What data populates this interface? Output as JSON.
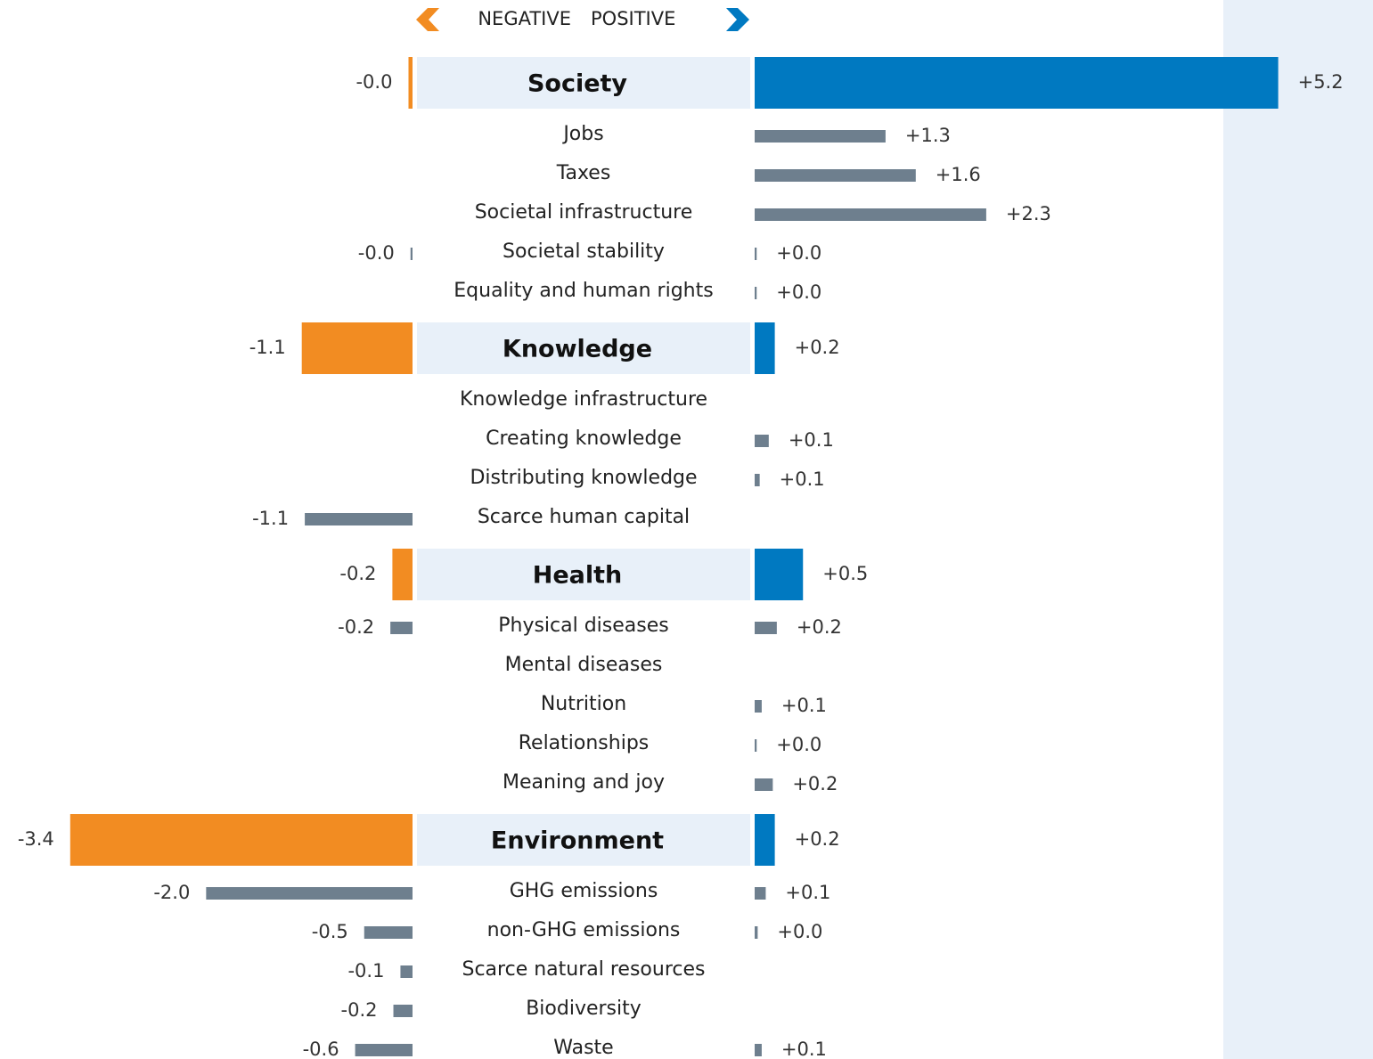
{
  "chart_data": {
    "type": "diverging_bar",
    "legend": {
      "negative": "NEGATIVE",
      "positive": "POSITIVE"
    },
    "colors": {
      "negative": "#f28c22",
      "positive": "#0079c1",
      "item": "#6e7f8e",
      "header": "#e8f0f9"
    },
    "groups": [
      {
        "name": "Society",
        "negative": -0.04,
        "negative_label": "-0.0",
        "positive": 5.2,
        "positive_label": "+5.2",
        "items": [
          {
            "name": "Jobs",
            "negative": null,
            "negative_label": null,
            "positive": 1.3,
            "positive_label": "+1.3"
          },
          {
            "name": "Taxes",
            "negative": null,
            "negative_label": null,
            "positive": 1.6,
            "positive_label": "+1.6"
          },
          {
            "name": "Societal infrastructure",
            "negative": null,
            "negative_label": null,
            "positive": 2.3,
            "positive_label": "+2.3"
          },
          {
            "name": "Societal stability",
            "negative": -0.02,
            "negative_label": "-0.0",
            "positive": 0.02,
            "positive_label": "+0.0"
          },
          {
            "name": "Equality and human rights",
            "negative": null,
            "negative_label": null,
            "positive": 0.02,
            "positive_label": "+0.0"
          }
        ]
      },
      {
        "name": "Knowledge",
        "negative": -1.1,
        "negative_label": "-1.1",
        "positive": 0.2,
        "positive_label": "+0.2",
        "items": [
          {
            "name": "Knowledge infrastructure",
            "negative": null,
            "negative_label": null,
            "positive": null,
            "positive_label": null
          },
          {
            "name": "Creating knowledge",
            "negative": null,
            "negative_label": null,
            "positive": 0.14,
            "positive_label": "+0.1"
          },
          {
            "name": "Distributing knowledge",
            "negative": null,
            "negative_label": null,
            "positive": 0.05,
            "positive_label": "+0.1"
          },
          {
            "name": "Scarce human capital",
            "negative": -1.07,
            "negative_label": "-1.1",
            "positive": null,
            "positive_label": null
          }
        ]
      },
      {
        "name": "Health",
        "negative": -0.2,
        "negative_label": "-0.2",
        "positive": 0.48,
        "positive_label": "+0.5",
        "items": [
          {
            "name": "Physical diseases",
            "negative": -0.22,
            "negative_label": "-0.2",
            "positive": 0.22,
            "positive_label": "+0.2"
          },
          {
            "name": "Mental diseases",
            "negative": null,
            "negative_label": null,
            "positive": null,
            "positive_label": null
          },
          {
            "name": "Nutrition",
            "negative": null,
            "negative_label": null,
            "positive": 0.07,
            "positive_label": "+0.1"
          },
          {
            "name": "Relationships",
            "negative": null,
            "negative_label": null,
            "positive": 0.02,
            "positive_label": "+0.0"
          },
          {
            "name": "Meaning and joy",
            "negative": null,
            "negative_label": null,
            "positive": 0.18,
            "positive_label": "+0.2"
          }
        ]
      },
      {
        "name": "Environment",
        "negative": -3.4,
        "negative_label": "-3.4",
        "positive": 0.2,
        "positive_label": "+0.2",
        "items": [
          {
            "name": "GHG emissions",
            "negative": -2.05,
            "negative_label": "-2.0",
            "positive": 0.11,
            "positive_label": "+0.1"
          },
          {
            "name": "non-GHG emissions",
            "negative": -0.48,
            "negative_label": "-0.5",
            "positive": 0.03,
            "positive_label": "+0.0"
          },
          {
            "name": "Scarce natural resources",
            "negative": -0.12,
            "negative_label": "-0.1",
            "positive": null,
            "positive_label": null
          },
          {
            "name": "Biodiversity",
            "negative": -0.19,
            "negative_label": "-0.2",
            "positive": null,
            "positive_label": null
          },
          {
            "name": "Waste",
            "negative": -0.57,
            "negative_label": "-0.6",
            "positive": 0.07,
            "positive_label": "+0.1"
          }
        ]
      }
    ]
  }
}
